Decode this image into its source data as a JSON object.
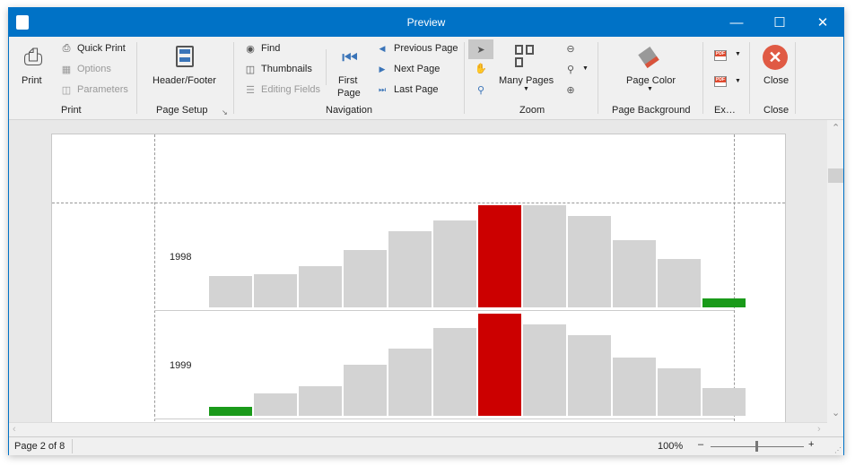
{
  "window": {
    "title": "Preview"
  },
  "ribbon": {
    "print": {
      "print": "Print",
      "quick_print": "Quick Print",
      "options": "Options",
      "parameters": "Parameters",
      "group": "Print"
    },
    "page_setup": {
      "header_footer": "Header/Footer",
      "group": "Page Setup"
    },
    "navigation": {
      "find": "Find",
      "thumbnails": "Thumbnails",
      "editing_fields": "Editing Fields",
      "first_page_1": "First",
      "first_page_2": "Page",
      "previous_page": "Previous Page",
      "next_page": "Next  Page",
      "last_page": "Last  Page",
      "group": "Navigation"
    },
    "zoom": {
      "many_pages": "Many Pages",
      "group": "Zoom"
    },
    "page_background": {
      "page_color": "Page Color",
      "group": "Page Background"
    },
    "export": {
      "group": "Ex…",
      "pdf": "PDF"
    },
    "close": {
      "close": "Close",
      "group": "Close"
    }
  },
  "report": {
    "colors": {
      "normal": "#d3d3d3",
      "max": "#cc0000",
      "min": "#1a9a1a"
    },
    "rows": [
      {
        "label": "1998",
        "values": [
          35,
          37,
          46,
          64,
          85,
          97,
          114,
          114,
          102,
          75,
          54,
          10
        ]
      },
      {
        "label": "1999",
        "values": [
          10,
          25,
          33,
          57,
          75,
          98,
          114,
          102,
          90,
          65,
          53,
          31
        ]
      }
    ]
  },
  "status": {
    "page": "Page 2 of 8",
    "zoom": "100%"
  }
}
